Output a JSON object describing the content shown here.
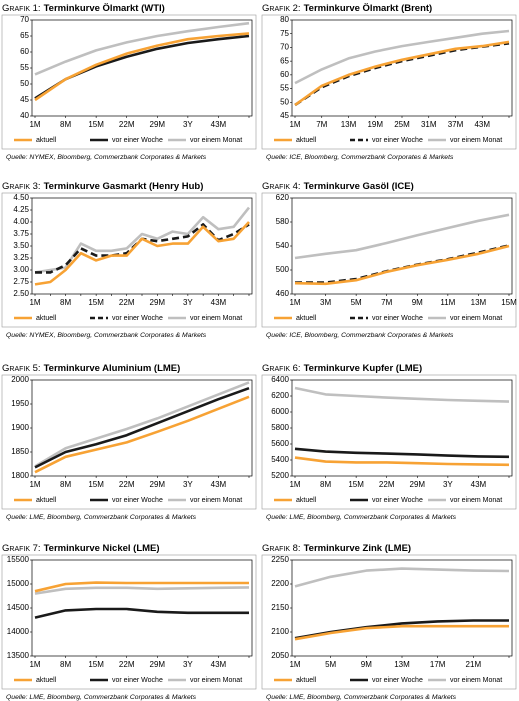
{
  "chart_data": [
    {
      "type": "line",
      "label": "Grafik 1:",
      "title": "Terminkurve Ölmarkt (WTI)",
      "source": "Quelle: NYMEX, Bloomberg, Commerzbank Corporates & Markets",
      "categories": [
        "1M",
        "8M",
        "15M",
        "22M",
        "29M",
        "3Y",
        "43M",
        null
      ],
      "ylim": [
        40,
        70
      ],
      "yticks": [
        40,
        45,
        50,
        55,
        60,
        65,
        70
      ],
      "series": [
        {
          "name": "aktuell",
          "color": "#f7a234",
          "values": [
            45,
            51.5,
            56,
            59.5,
            62,
            64,
            65,
            65.8
          ]
        },
        {
          "name": "vor einer Woche",
          "color": "#1a1a1a",
          "values": [
            45.5,
            51.5,
            55.5,
            58.5,
            61,
            62.8,
            64,
            65
          ]
        },
        {
          "name": "vor einem Monat",
          "color": "#bfbfbf",
          "values": [
            53,
            57,
            60.5,
            63,
            65,
            66.5,
            67.8,
            69
          ]
        }
      ]
    },
    {
      "type": "line",
      "label": "Grafik 2:",
      "title": "Terminkurve Ölmarkt (Brent)",
      "source": "Quelle: ICE, Bloomberg, Commerzbank Corporates & Markets",
      "categories": [
        "1M",
        "7M",
        "13M",
        "19M",
        "25M",
        "31M",
        "37M",
        "43M",
        null
      ],
      "ylim": [
        45,
        80
      ],
      "yticks": [
        45,
        50,
        55,
        60,
        65,
        70,
        75,
        80
      ],
      "series": [
        {
          "name": "aktuell",
          "color": "#f7a234",
          "values": [
            49,
            56,
            60,
            63,
            65.5,
            67.5,
            69.5,
            70.5,
            72
          ]
        },
        {
          "name": "vor einer Woche",
          "color": "#1a1a1a",
          "dashed": true,
          "values": [
            49,
            55.5,
            59.5,
            62.5,
            65,
            67,
            69,
            70.3,
            71.5
          ]
        },
        {
          "name": "vor einem Monat",
          "color": "#bfbfbf",
          "values": [
            57,
            62,
            66,
            68.5,
            70.5,
            72,
            73.5,
            75,
            76
          ]
        }
      ]
    },
    {
      "type": "line",
      "label": "Grafik 3:",
      "title": "Terminkurve Gasmarkt (Henry Hub)",
      "source": "Quelle: NYMEX, Bloomberg, Commerzbank Corporates & Markets",
      "categories": [
        "1M",
        null,
        "8M",
        null,
        "15M",
        null,
        "22M",
        null,
        "29M",
        null,
        "3Y",
        null,
        "43M",
        null,
        null
      ],
      "ylim": [
        2.5,
        4.5
      ],
      "yticks": [
        {
          "value": 2.5,
          "label": "2.50"
        },
        {
          "value": 2.75,
          "label": "2.75"
        },
        {
          "value": 3,
          "label": "3.00"
        },
        {
          "value": 3.25,
          "label": "3.25"
        },
        {
          "value": 3.5,
          "label": "3.50"
        },
        {
          "value": 3.75,
          "label": "3.75"
        },
        {
          "value": 4,
          "label": "4.00"
        },
        {
          "value": 4.25,
          "label": "4.25"
        },
        {
          "value": 4.5,
          "label": "4.50"
        }
      ],
      "series": [
        {
          "name": "aktuell",
          "color": "#f7a234",
          "values": [
            2.7,
            2.75,
            3.0,
            3.35,
            3.2,
            3.3,
            3.3,
            3.65,
            3.5,
            3.55,
            3.55,
            3.9,
            3.6,
            3.65,
            4.0
          ]
        },
        {
          "name": "vor einer Woche",
          "color": "#1a1a1a",
          "dashed": true,
          "values": [
            2.95,
            2.95,
            3.1,
            3.45,
            3.3,
            3.3,
            3.35,
            3.65,
            3.6,
            3.65,
            3.7,
            3.95,
            3.62,
            3.75,
            3.95
          ]
        },
        {
          "name": "vor einem Monat",
          "color": "#bfbfbf",
          "values": [
            2.95,
            3.0,
            3.05,
            3.55,
            3.4,
            3.4,
            3.45,
            3.75,
            3.65,
            3.8,
            3.75,
            4.1,
            3.85,
            3.9,
            4.3
          ]
        }
      ]
    },
    {
      "type": "line",
      "label": "Grafik 4:",
      "title": "Terminkurve Gasöl (ICE)",
      "source": "Quelle: ICE, Bloomberg, Commerzbank Corporates & Markets",
      "categories": [
        "1M",
        "3M",
        "5M",
        "7M",
        "9M",
        "11M",
        "13M",
        "15M"
      ],
      "ylim": [
        460,
        620
      ],
      "yticks": [
        460,
        500,
        540,
        580,
        620
      ],
      "series": [
        {
          "name": "aktuell",
          "color": "#f7a234",
          "values": [
            478,
            477,
            483,
            497,
            508,
            517,
            527,
            540
          ]
        },
        {
          "name": "vor einer Woche",
          "color": "#1a1a1a",
          "dashed": true,
          "values": [
            479,
            479,
            485,
            498,
            509,
            518,
            529,
            541
          ]
        },
        {
          "name": "vor einem Monat",
          "color": "#bfbfbf",
          "values": [
            520,
            527,
            533,
            545,
            558,
            570,
            582,
            592
          ]
        }
      ]
    },
    {
      "type": "line",
      "label": "Grafik 5:",
      "title": "Terminkurve Aluminium (LME)",
      "source": "Quelle: LME, Bloomberg, Commerzbank Corporates & Markets",
      "categories": [
        "1M",
        "8M",
        "15M",
        "22M",
        "29M",
        "3Y",
        "43M",
        null
      ],
      "ylim": [
        1800,
        2000
      ],
      "yticks": [
        1800,
        1850,
        1900,
        1950,
        2000
      ],
      "series": [
        {
          "name": "aktuell",
          "color": "#f7a234",
          "values": [
            1808,
            1840,
            1855,
            1870,
            1892,
            1915,
            1940,
            1965
          ]
        },
        {
          "name": "vor einer Woche",
          "color": "#1a1a1a",
          "values": [
            1818,
            1850,
            1866,
            1885,
            1910,
            1935,
            1960,
            1983
          ]
        },
        {
          "name": "vor einem Monat",
          "color": "#bfbfbf",
          "values": [
            1820,
            1858,
            1878,
            1898,
            1920,
            1945,
            1970,
            1995
          ]
        }
      ]
    },
    {
      "type": "line",
      "label": "Grafik 6:",
      "title": "Terminkurve Kupfer (LME)",
      "source": "Quelle: LME, Bloomberg, Commerzbank Corporates & Markets",
      "categories": [
        "1M",
        "8M",
        "15M",
        "22M",
        "29M",
        "3Y",
        "43M",
        null
      ],
      "ylim": [
        5200,
        6400
      ],
      "yticks": [
        5200,
        5400,
        5600,
        5800,
        6000,
        6200,
        6400
      ],
      "series": [
        {
          "name": "aktuell",
          "color": "#f7a234",
          "values": [
            5430,
            5380,
            5370,
            5370,
            5360,
            5350,
            5345,
            5340
          ]
        },
        {
          "name": "vor einer Woche",
          "color": "#1a1a1a",
          "values": [
            5540,
            5505,
            5490,
            5480,
            5470,
            5455,
            5445,
            5440
          ]
        },
        {
          "name": "vor einem Monat",
          "color": "#bfbfbf",
          "values": [
            6300,
            6220,
            6200,
            6180,
            6165,
            6150,
            6140,
            6130
          ]
        }
      ]
    },
    {
      "type": "line",
      "label": "Grafik 7:",
      "title": "Terminkurve Nickel (LME)",
      "source": "Quelle: LME, Bloomberg, Commerzbank Corporates & Markets",
      "categories": [
        "1M",
        "8M",
        "15M",
        "22M",
        "29M",
        "3Y",
        "43M",
        null
      ],
      "ylim": [
        13500,
        15500
      ],
      "yticks": [
        13500,
        14000,
        14500,
        15000,
        15500
      ],
      "series": [
        {
          "name": "aktuell",
          "color": "#f7a234",
          "values": [
            14850,
            15000,
            15030,
            15020,
            15020,
            15020,
            15020,
            15020
          ]
        },
        {
          "name": "vor einer Woche",
          "color": "#1a1a1a",
          "values": [
            14300,
            14450,
            14480,
            14480,
            14420,
            14400,
            14400,
            14400
          ]
        },
        {
          "name": "vor einem Monat",
          "color": "#bfbfbf",
          "values": [
            14800,
            14900,
            14920,
            14920,
            14900,
            14910,
            14920,
            14930
          ]
        }
      ]
    },
    {
      "type": "line",
      "label": "Grafik 8:",
      "title": "Terminkurve Zink (LME)",
      "source": "Quelle: LME, Bloomberg, Commerzbank Corporates & Markets",
      "categories": [
        "1M",
        "5M",
        "9M",
        "13M",
        "17M",
        "21M",
        null
      ],
      "ylim": [
        2050,
        2250
      ],
      "yticks": [
        2050,
        2100,
        2150,
        2200,
        2250
      ],
      "series": [
        {
          "name": "aktuell",
          "color": "#f7a234",
          "values": [
            2085,
            2098,
            2108,
            2112,
            2112,
            2112,
            2112
          ]
        },
        {
          "name": "vor einer Woche",
          "color": "#1a1a1a",
          "values": [
            2087,
            2100,
            2110,
            2118,
            2122,
            2124,
            2124
          ]
        },
        {
          "name": "vor einem Monat",
          "color": "#bfbfbf",
          "values": [
            2195,
            2215,
            2228,
            2232,
            2230,
            2228,
            2227
          ]
        }
      ]
    }
  ]
}
